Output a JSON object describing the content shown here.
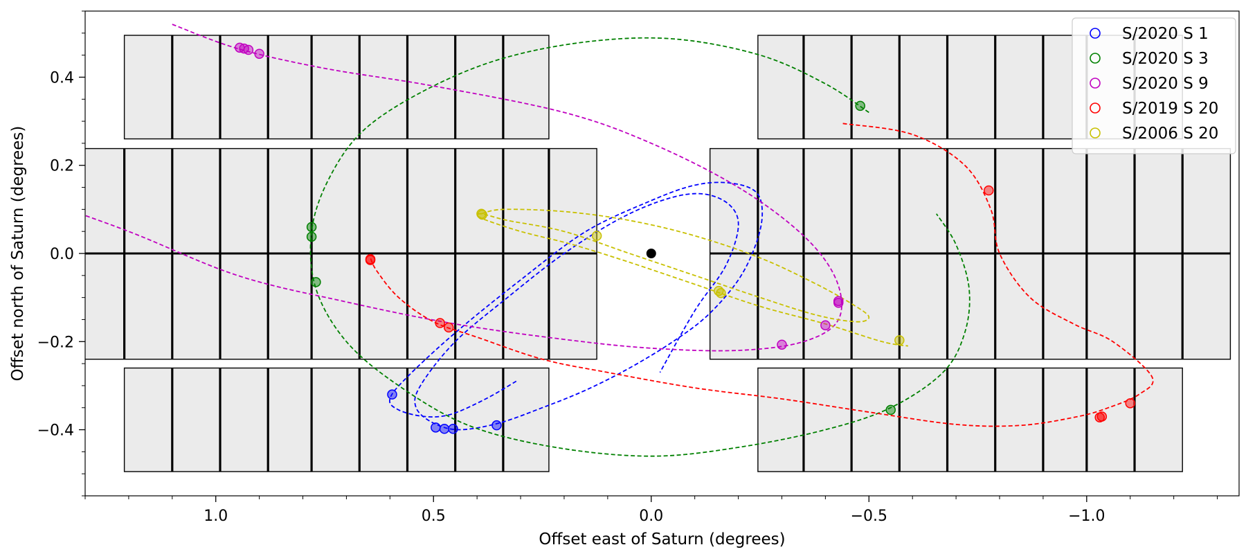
{
  "chart_data": {
    "type": "scatter",
    "xlabel": "Offset east of Saturn (degrees)",
    "ylabel": "Offset north of Saturn (degrees)",
    "x_axis_inverted": true,
    "xlim": [
      1.3,
      -1.35
    ],
    "ylim": [
      -0.55,
      0.55
    ],
    "x_ticks": [
      1.0,
      0.5,
      0.0,
      -0.5,
      -1.0
    ],
    "x_tick_labels": [
      "1.0",
      "0.5",
      "0.0",
      "−0.5",
      "−1.0"
    ],
    "y_ticks": [
      0.4,
      0.2,
      0.0,
      -0.2,
      -0.4
    ],
    "y_tick_labels": [
      "0.4",
      "0.2",
      "0.0",
      "−0.2",
      "−0.4"
    ],
    "grid": false,
    "legend_position": "top-right",
    "saturn": {
      "x": 0.0,
      "y": 0.0,
      "color": "#000000"
    },
    "detector_fields": {
      "fill": "#ebebeb",
      "edge": "#000000",
      "chips": [
        {
          "x0": 1.21,
          "x1": 0.235,
          "y0": 0.26,
          "y1": 0.495,
          "dividers": [
            1.1,
            0.99,
            0.88,
            0.78,
            0.67,
            0.56,
            0.45,
            0.34
          ]
        },
        {
          "x0": -0.245,
          "x1": -1.22,
          "y0": 0.26,
          "y1": 0.495,
          "dividers": [
            -0.35,
            -0.46,
            -0.57,
            -0.68,
            -0.79,
            -0.9,
            -1.0,
            -1.11
          ]
        },
        {
          "x0": 1.32,
          "x1": 0.125,
          "y0": -0.24,
          "y1": 0.238,
          "dividers": [
            1.21,
            1.1,
            0.99,
            0.88,
            0.78,
            0.67,
            0.56,
            0.45,
            0.34,
            0.235
          ]
        },
        {
          "x0": -0.135,
          "x1": -1.33,
          "y0": -0.24,
          "y1": 0.238,
          "dividers": [
            -0.245,
            -0.35,
            -0.46,
            -0.57,
            -0.68,
            -0.79,
            -0.9,
            -1.0,
            -1.11,
            -1.22
          ]
        },
        {
          "x0": 1.21,
          "x1": 0.235,
          "y0": -0.495,
          "y1": -0.26,
          "dividers": [
            1.1,
            0.99,
            0.88,
            0.78,
            0.67,
            0.56,
            0.45,
            0.34
          ]
        },
        {
          "x0": -0.245,
          "x1": -1.22,
          "y0": -0.495,
          "y1": -0.26,
          "dividers": [
            -0.35,
            -0.46,
            -0.57,
            -0.68,
            -0.79,
            -0.9,
            -1.0,
            -1.11
          ]
        }
      ],
      "seams": [
        {
          "x0": 1.32,
          "x1": 0.125,
          "y": 0.0
        },
        {
          "x0": -0.135,
          "x1": -1.33,
          "y": 0.0
        }
      ]
    },
    "series": [
      {
        "name": "S/2020 S 1",
        "color": "#0000ff",
        "orbit": [
          [
            0.31,
            -0.29
          ],
          [
            0.38,
            -0.33
          ],
          [
            0.46,
            -0.365
          ],
          [
            0.52,
            -0.37
          ],
          [
            0.58,
            -0.355
          ],
          [
            0.6,
            -0.33
          ],
          [
            0.56,
            -0.28
          ],
          [
            0.45,
            -0.18
          ],
          [
            0.3,
            -0.06
          ],
          [
            0.15,
            0.05
          ],
          [
            0.0,
            0.12
          ],
          [
            -0.1,
            0.155
          ],
          [
            -0.18,
            0.16
          ],
          [
            -0.24,
            0.14
          ],
          [
            -0.255,
            0.09
          ],
          [
            -0.24,
            0.02
          ],
          [
            -0.2,
            -0.06
          ],
          [
            -0.13,
            -0.14
          ],
          [
            -0.05,
            -0.2
          ],
          [
            0.05,
            -0.26
          ],
          [
            0.15,
            -0.31
          ],
          [
            0.25,
            -0.35
          ],
          [
            0.35,
            -0.385
          ],
          [
            0.44,
            -0.4
          ],
          [
            0.5,
            -0.385
          ],
          [
            0.54,
            -0.35
          ],
          [
            0.53,
            -0.3
          ],
          [
            0.45,
            -0.2
          ],
          [
            0.33,
            -0.1
          ],
          [
            0.2,
            0.0
          ],
          [
            0.07,
            0.08
          ],
          [
            -0.04,
            0.125
          ],
          [
            -0.12,
            0.135
          ],
          [
            -0.18,
            0.11
          ],
          [
            -0.2,
            0.06
          ],
          [
            -0.17,
            -0.03
          ],
          [
            -0.1,
            -0.13
          ],
          [
            -0.02,
            -0.27
          ]
        ],
        "points": [
          [
            0.595,
            -0.32
          ],
          [
            0.495,
            -0.395
          ],
          [
            0.475,
            -0.398
          ],
          [
            0.455,
            -0.398
          ],
          [
            0.355,
            -0.39
          ]
        ]
      },
      {
        "name": "S/2020 S 3",
        "color": "#008000",
        "orbit": [
          [
            -0.5,
            0.32
          ],
          [
            -0.4,
            0.385
          ],
          [
            -0.25,
            0.45
          ],
          [
            -0.05,
            0.487
          ],
          [
            0.15,
            0.48
          ],
          [
            0.35,
            0.44
          ],
          [
            0.52,
            0.37
          ],
          [
            0.66,
            0.28
          ],
          [
            0.74,
            0.17
          ],
          [
            0.78,
            0.05
          ],
          [
            0.77,
            -0.08
          ],
          [
            0.7,
            -0.2
          ],
          [
            0.58,
            -0.3
          ],
          [
            0.42,
            -0.39
          ],
          [
            0.22,
            -0.44
          ],
          [
            0.0,
            -0.46
          ],
          [
            -0.2,
            -0.44
          ],
          [
            -0.4,
            -0.4
          ],
          [
            -0.55,
            -0.35
          ],
          [
            -0.67,
            -0.27
          ],
          [
            -0.72,
            -0.18
          ],
          [
            -0.73,
            -0.08
          ],
          [
            -0.7,
            0.02
          ],
          [
            -0.655,
            0.09
          ]
        ],
        "points": [
          [
            -0.48,
            0.335
          ],
          [
            0.78,
            0.06
          ],
          [
            0.78,
            0.038
          ],
          [
            0.77,
            -0.065
          ],
          [
            -0.55,
            -0.355
          ]
        ]
      },
      {
        "name": "S/2020 S 9",
        "color": "#c000c0",
        "orbit": [
          [
            1.1,
            0.52
          ],
          [
            0.95,
            0.465
          ],
          [
            0.75,
            0.42
          ],
          [
            0.5,
            0.38
          ],
          [
            0.2,
            0.32
          ],
          [
            0.0,
            0.25
          ],
          [
            -0.2,
            0.15
          ],
          [
            -0.35,
            0.04
          ],
          [
            -0.425,
            -0.06
          ],
          [
            -0.43,
            -0.15
          ],
          [
            -0.35,
            -0.2
          ],
          [
            -0.2,
            -0.22
          ],
          [
            0.0,
            -0.215
          ],
          [
            0.2,
            -0.195
          ],
          [
            0.45,
            -0.16
          ],
          [
            0.7,
            -0.11
          ],
          [
            0.95,
            -0.05
          ],
          [
            1.2,
            0.05
          ],
          [
            1.45,
            0.14
          ],
          [
            1.55,
            0.19
          ],
          [
            1.65,
            0.24
          ]
        ],
        "points": [
          [
            0.945,
            0.467
          ],
          [
            0.935,
            0.465
          ],
          [
            0.925,
            0.462
          ],
          [
            0.9,
            0.453
          ],
          [
            -0.43,
            -0.108
          ],
          [
            -0.43,
            -0.112
          ],
          [
            -0.4,
            -0.163
          ],
          [
            -0.3,
            -0.207
          ]
        ]
      },
      {
        "name": "S/2019 S 20",
        "color": "#ff0000",
        "orbit": [
          [
            -0.44,
            0.295
          ],
          [
            -0.6,
            0.27
          ],
          [
            -0.72,
            0.2
          ],
          [
            -0.78,
            0.1
          ],
          [
            -0.8,
            0.0
          ],
          [
            -0.87,
            -0.1
          ],
          [
            -0.97,
            -0.16
          ],
          [
            -1.06,
            -0.2
          ],
          [
            -1.15,
            -0.28
          ],
          [
            -1.12,
            -0.32
          ],
          [
            -1.05,
            -0.35
          ],
          [
            -0.98,
            -0.37
          ],
          [
            -0.85,
            -0.39
          ],
          [
            -0.7,
            -0.388
          ],
          [
            -0.5,
            -0.36
          ],
          [
            -0.3,
            -0.33
          ],
          [
            -0.1,
            -0.305
          ],
          [
            0.1,
            -0.27
          ],
          [
            0.25,
            -0.24
          ],
          [
            0.4,
            -0.19
          ],
          [
            0.5,
            -0.155
          ],
          [
            0.58,
            -0.1
          ],
          [
            0.63,
            -0.04
          ],
          [
            0.645,
            -0.01
          ]
        ],
        "points": [
          [
            0.645,
            -0.013
          ],
          [
            0.645,
            -0.015
          ],
          [
            0.485,
            -0.158
          ],
          [
            0.465,
            -0.168
          ],
          [
            -0.775,
            0.143
          ],
          [
            -1.035,
            -0.37
          ],
          [
            -1.03,
            -0.372
          ],
          [
            -1.1,
            -0.34
          ]
        ]
      },
      {
        "name": "S/2006 S 20",
        "color": "#c8c000",
        "orbit": [
          [
            0.39,
            0.09
          ],
          [
            0.34,
            0.1
          ],
          [
            0.2,
            0.095
          ],
          [
            0.05,
            0.075
          ],
          [
            -0.1,
            0.04
          ],
          [
            -0.25,
            -0.01
          ],
          [
            -0.38,
            -0.07
          ],
          [
            -0.47,
            -0.12
          ],
          [
            -0.5,
            -0.145
          ],
          [
            -0.47,
            -0.155
          ],
          [
            -0.38,
            -0.14
          ],
          [
            -0.25,
            -0.1
          ],
          [
            -0.1,
            -0.05
          ],
          [
            0.05,
            -0.0
          ],
          [
            0.2,
            0.05
          ],
          [
            0.33,
            0.075
          ],
          [
            0.39,
            0.09
          ],
          [
            0.39,
            0.08
          ],
          [
            0.3,
            0.05
          ],
          [
            0.18,
            0.02
          ],
          [
            0.05,
            -0.02
          ],
          [
            -0.1,
            -0.07
          ],
          [
            -0.25,
            -0.12
          ],
          [
            -0.4,
            -0.16
          ],
          [
            -0.53,
            -0.2
          ],
          [
            -0.59,
            -0.21
          ]
        ],
        "points": [
          [
            0.39,
            0.09
          ],
          [
            0.388,
            0.088
          ],
          [
            0.125,
            0.04
          ],
          [
            -0.155,
            -0.085
          ],
          [
            -0.16,
            -0.09
          ],
          [
            -0.57,
            -0.197
          ]
        ]
      }
    ]
  }
}
